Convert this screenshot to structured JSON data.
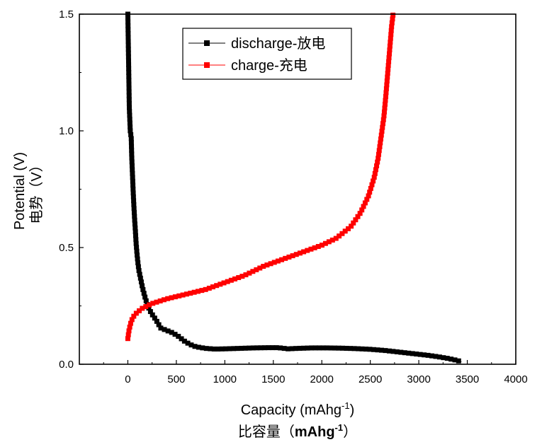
{
  "chart_data": {
    "type": "scatter",
    "xlabel": "Capacity (mAhg",
    "xlabel_sup": "-1",
    "xlabel_end": ")",
    "xlabel_cn": "比容量（",
    "xlabel_cn_bold": "mAhg",
    "xlabel_cn_sup": "-1",
    "xlabel_cn_end": "）",
    "ylabel": "Potential (V)",
    "ylabel_cn": "电势（V）",
    "xlim": [
      -500,
      4000
    ],
    "ylim": [
      0,
      1.5
    ],
    "xticks": [
      0,
      500,
      1000,
      1500,
      2000,
      2500,
      3000,
      3500,
      4000
    ],
    "yticks": [
      0.0,
      0.5,
      1.0,
      1.5
    ],
    "ytick_labels": [
      "0.0",
      "0.5",
      "1.0",
      "1.5"
    ],
    "legend_position": "top-center",
    "series": [
      {
        "name": "discharge-放电",
        "color": "#000000",
        "line": true,
        "points": [
          [
            0,
            1.5
          ],
          [
            15,
            1.1
          ],
          [
            25,
            1.0
          ],
          [
            35,
            0.97
          ],
          [
            40,
            0.89
          ],
          [
            48,
            0.81
          ],
          [
            55,
            0.74
          ],
          [
            62,
            0.68
          ],
          [
            70,
            0.62
          ],
          [
            78,
            0.57
          ],
          [
            85,
            0.52
          ],
          [
            95,
            0.47
          ],
          [
            105,
            0.43
          ],
          [
            115,
            0.4
          ],
          [
            130,
            0.37
          ],
          [
            150,
            0.33
          ],
          [
            175,
            0.29
          ],
          [
            205,
            0.25
          ],
          [
            240,
            0.22
          ],
          [
            290,
            0.19
          ],
          [
            340,
            0.155
          ],
          [
            400,
            0.145
          ],
          [
            460,
            0.135
          ],
          [
            520,
            0.12
          ],
          [
            580,
            0.1
          ],
          [
            640,
            0.085
          ],
          [
            700,
            0.075
          ],
          [
            800,
            0.068
          ],
          [
            900,
            0.065
          ],
          [
            1000,
            0.066
          ],
          [
            1150,
            0.068
          ],
          [
            1300,
            0.07
          ],
          [
            1450,
            0.071
          ],
          [
            1550,
            0.071
          ],
          [
            1650,
            0.066
          ],
          [
            1750,
            0.068
          ],
          [
            1900,
            0.07
          ],
          [
            2050,
            0.07
          ],
          [
            2200,
            0.069
          ],
          [
            2350,
            0.067
          ],
          [
            2500,
            0.064
          ],
          [
            2650,
            0.059
          ],
          [
            2800,
            0.052
          ],
          [
            2950,
            0.045
          ],
          [
            3100,
            0.038
          ],
          [
            3200,
            0.032
          ],
          [
            3300,
            0.025
          ],
          [
            3400,
            0.016
          ],
          [
            3440,
            0.01
          ]
        ]
      },
      {
        "name": "charge-充电",
        "color": "#ff0000",
        "line": true,
        "points": [
          [
            0,
            0.11
          ],
          [
            10,
            0.14
          ],
          [
            25,
            0.17
          ],
          [
            50,
            0.2
          ],
          [
            90,
            0.22
          ],
          [
            150,
            0.24
          ],
          [
            250,
            0.26
          ],
          [
            400,
            0.28
          ],
          [
            600,
            0.3
          ],
          [
            800,
            0.32
          ],
          [
            1000,
            0.35
          ],
          [
            1200,
            0.38
          ],
          [
            1400,
            0.42
          ],
          [
            1600,
            0.45
          ],
          [
            1800,
            0.48
          ],
          [
            2000,
            0.51
          ],
          [
            2150,
            0.54
          ],
          [
            2300,
            0.59
          ],
          [
            2400,
            0.65
          ],
          [
            2480,
            0.72
          ],
          [
            2540,
            0.8
          ],
          [
            2580,
            0.88
          ],
          [
            2610,
            0.97
          ],
          [
            2640,
            1.06
          ],
          [
            2660,
            1.15
          ],
          [
            2680,
            1.25
          ],
          [
            2700,
            1.35
          ],
          [
            2720,
            1.45
          ],
          [
            2735,
            1.5
          ]
        ]
      }
    ]
  }
}
